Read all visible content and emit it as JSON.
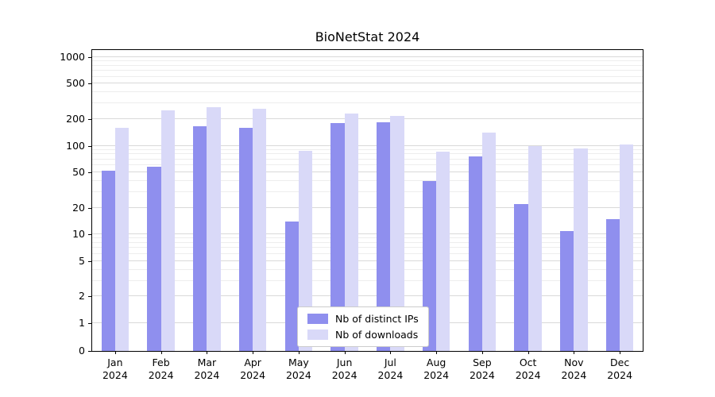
{
  "chart_data": {
    "type": "bar",
    "title": "BioNetStat 2024",
    "categories": [
      "Jan",
      "Feb",
      "Mar",
      "Apr",
      "May",
      "Jun",
      "Jul",
      "Aug",
      "Sep",
      "Oct",
      "Nov",
      "Dec"
    ],
    "year_label": "2024",
    "series": [
      {
        "name": "Nb of distinct IPs",
        "color": "#8f8fee",
        "values": [
          52,
          58,
          165,
          160,
          14,
          180,
          183,
          40,
          76,
          22,
          11,
          15
        ]
      },
      {
        "name": "Nb of downloads",
        "color": "#d9d9f8",
        "values": [
          160,
          250,
          270,
          260,
          88,
          233,
          218,
          85,
          140,
          100,
          94,
          103
        ]
      }
    ],
    "xlabel": "",
    "ylabel": "",
    "yscale": "symlog",
    "yticks": [
      0,
      1,
      2,
      5,
      10,
      20,
      50,
      100,
      200,
      500,
      1000
    ],
    "ylim": [
      0,
      1200
    ],
    "grid": true,
    "legend_position": "lower center"
  }
}
